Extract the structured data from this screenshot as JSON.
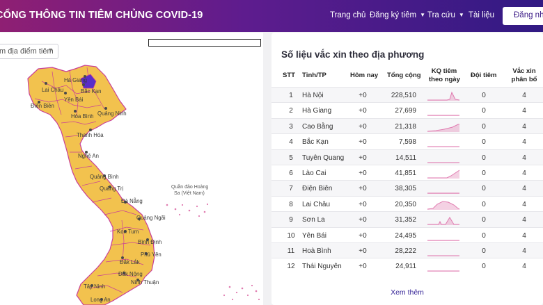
{
  "header": {
    "title": "CỔNG THÔNG TIN TIÊM CHỦNG COVID-19",
    "nav": [
      {
        "label": "Trang chủ",
        "dropdown": false
      },
      {
        "label": "Đăng ký tiêm",
        "dropdown": true
      },
      {
        "label": "Tra cứu",
        "dropdown": true
      },
      {
        "label": "Tài liệu",
        "dropdown": false
      }
    ],
    "login_label": "Đăng nhập"
  },
  "map": {
    "select_placeholder": "m địa điểm tiêm",
    "colors": {
      "province": "#f2c24e",
      "border": "#c93f97",
      "highlight": "#5a2dc8",
      "dot": "#4a4a4a"
    },
    "labels": [
      "Hà Giang",
      "Lai Châu",
      "Bắc Kạn",
      "Yên Bái",
      "Điện Biên",
      "Quảng Ninh",
      "Hòa Bình",
      "Thanh Hóa",
      "Nghệ An",
      "Quảng Bình",
      "Quảng Trị",
      "Đà Nẵng",
      "Quảng Ngãi",
      "Kon Tum",
      "Bình Định",
      "Phú Yên",
      "Đắk Lắk",
      "Đắk Nông",
      "Ninh Thuận",
      "Tây Ninh",
      "Long An"
    ],
    "island_label_1": "Quần đảo Hoàng",
    "island_label_2": "Sa (Việt Nam)"
  },
  "table": {
    "title": "Số liệu vắc xin theo địa phương",
    "columns": {
      "stt": "STT",
      "province": "Tỉnh/TP",
      "today": "Hôm nay",
      "total": "Tổng cộng",
      "daily_line1": "KQ tiêm",
      "daily_line2": "theo ngày",
      "teams": "Đội tiêm",
      "dist_line1": "Vắc xin",
      "dist_line2": "phân bổ"
    },
    "rows": [
      {
        "stt": "1",
        "province": "Hà Nội",
        "today": "+0",
        "total": "228,510",
        "teams": "0",
        "distributed": "4",
        "spark": "peak_right"
      },
      {
        "stt": "2",
        "province": "Hà Giang",
        "today": "+0",
        "total": "27,699",
        "teams": "0",
        "distributed": "4",
        "spark": "flat"
      },
      {
        "stt": "3",
        "province": "Cao Bằng",
        "today": "+0",
        "total": "21,318",
        "teams": "0",
        "distributed": "4",
        "spark": "rise"
      },
      {
        "stt": "4",
        "province": "Bắc Kạn",
        "today": "+0",
        "total": "7,598",
        "teams": "0",
        "distributed": "4",
        "spark": "flat"
      },
      {
        "stt": "5",
        "province": "Tuyên Quang",
        "today": "+0",
        "total": "14,511",
        "teams": "0",
        "distributed": "4",
        "spark": "flat"
      },
      {
        "stt": "6",
        "province": "Lào Cai",
        "today": "+0",
        "total": "41,851",
        "teams": "0",
        "distributed": "4",
        "spark": "rise_end"
      },
      {
        "stt": "7",
        "province": "Điện Biên",
        "today": "+0",
        "total": "38,305",
        "teams": "0",
        "distributed": "4",
        "spark": "flat"
      },
      {
        "stt": "8",
        "province": "Lai Châu",
        "today": "+0",
        "total": "20,350",
        "teams": "0",
        "distributed": "4",
        "spark": "hump"
      },
      {
        "stt": "9",
        "province": "Sơn La",
        "today": "+0",
        "total": "31,352",
        "teams": "0",
        "distributed": "4",
        "spark": "spikes"
      },
      {
        "stt": "10",
        "province": "Yên Bái",
        "today": "+0",
        "total": "24,495",
        "teams": "0",
        "distributed": "4",
        "spark": "flat"
      },
      {
        "stt": "11",
        "province": "Hoà Bình",
        "today": "+0",
        "total": "28,222",
        "teams": "0",
        "distributed": "4",
        "spark": "flat"
      },
      {
        "stt": "12",
        "province": "Thái Nguyên",
        "today": "+0",
        "total": "24,911",
        "teams": "0",
        "distributed": "4",
        "spark": "flat"
      }
    ],
    "see_more": "Xem thêm",
    "spark_color": "#e07bb0"
  }
}
